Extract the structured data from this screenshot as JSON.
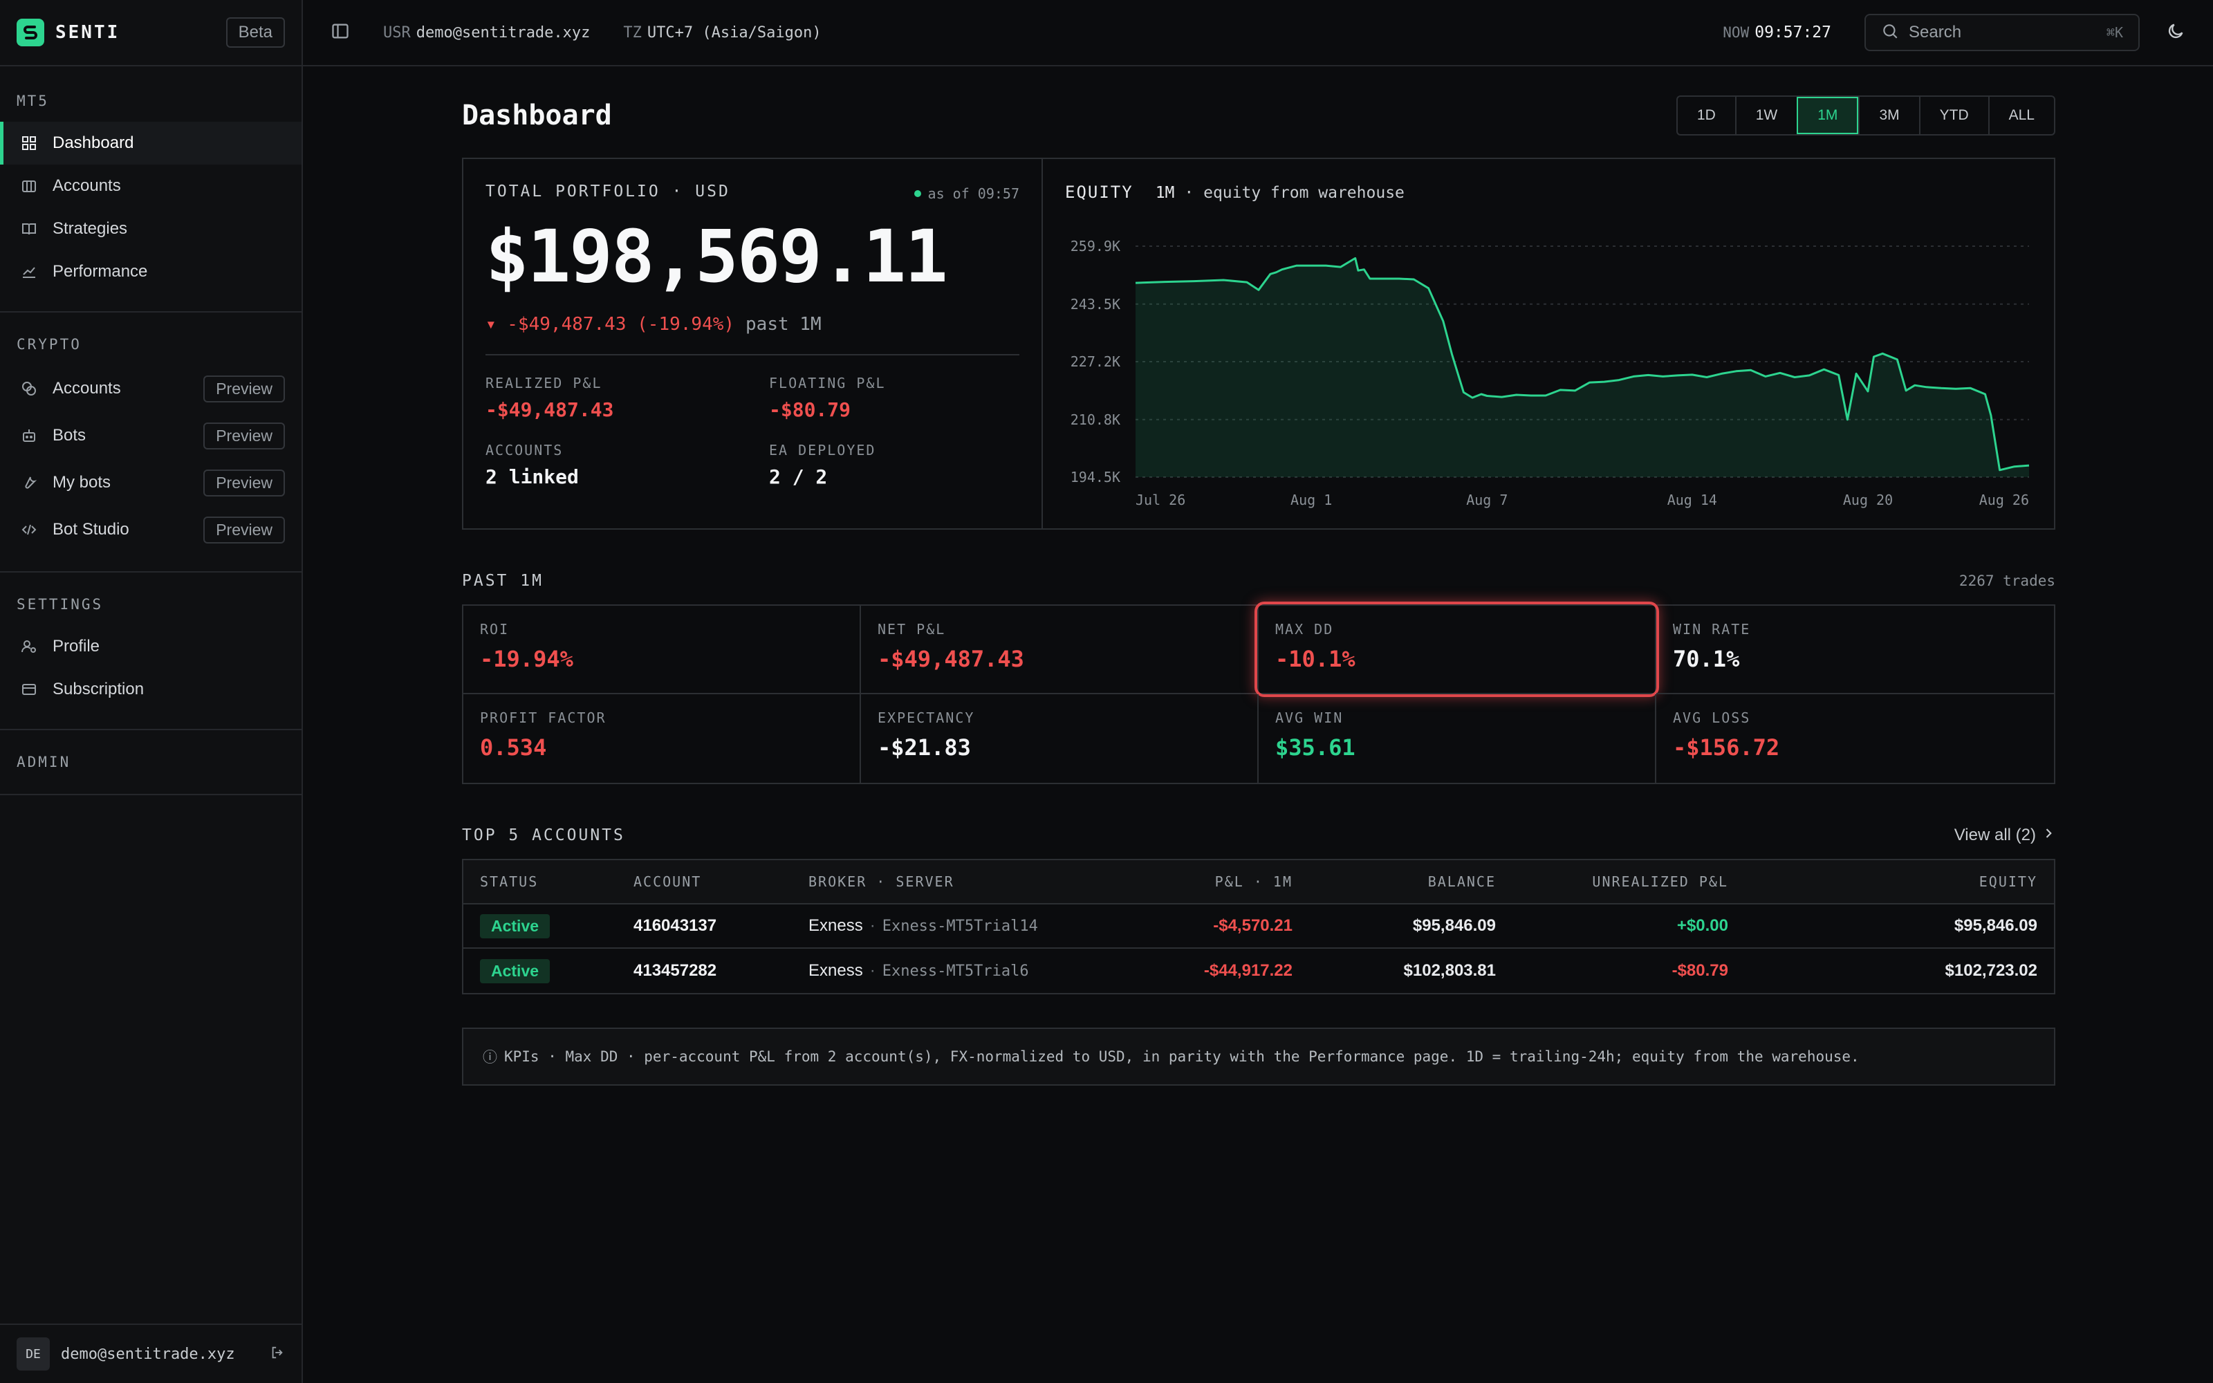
{
  "brand": {
    "name": "SENTI",
    "badge": "Beta"
  },
  "sidebar": {
    "sections": [
      {
        "heading": "MT5",
        "items": [
          {
            "label": "Dashboard",
            "icon": "grid-icon",
            "active": true
          },
          {
            "label": "Accounts",
            "icon": "briefcase-icon"
          },
          {
            "label": "Strategies",
            "icon": "book-icon"
          },
          {
            "label": "Performance",
            "icon": "chart-line-icon"
          }
        ]
      },
      {
        "heading": "CRYPTO",
        "items": [
          {
            "label": "Accounts",
            "icon": "coins-icon",
            "tag": "Preview"
          },
          {
            "label": "Bots",
            "icon": "bot-icon",
            "tag": "Preview"
          },
          {
            "label": "My bots",
            "icon": "wrench-icon",
            "tag": "Preview"
          },
          {
            "label": "Bot Studio",
            "icon": "code-icon",
            "tag": "Preview"
          }
        ]
      },
      {
        "heading": "SETTINGS",
        "items": [
          {
            "label": "Profile",
            "icon": "user-gear-icon"
          },
          {
            "label": "Subscription",
            "icon": "card-icon"
          }
        ]
      },
      {
        "heading": "ADMIN",
        "items": []
      }
    ],
    "footer": {
      "avatar": "DE",
      "email": "demo@sentitrade.xyz"
    }
  },
  "topbar": {
    "usr_label": "USR",
    "usr_value": "demo@sentitrade.xyz",
    "tz_label": "TZ",
    "tz_value": "UTC+7 (Asia/Saigon)",
    "now_label": "NOW",
    "now_value": "09:57:27",
    "search_placeholder": "Search",
    "search_shortcut": "⌘K"
  },
  "page": {
    "title": "Dashboard",
    "ranges": [
      "1D",
      "1W",
      "1M",
      "3M",
      "YTD",
      "ALL"
    ],
    "active_range": "1M"
  },
  "portfolio": {
    "label": "TOTAL PORTFOLIO · USD",
    "as_of": "as of 09:57",
    "total": "$198,569.11",
    "change": "▾ -$49,487.43 (-19.94%)",
    "change_period": "past 1M",
    "stats": [
      {
        "label": "REALIZED P&L",
        "value": "-$49,487.43",
        "tone": "neg"
      },
      {
        "label": "FLOATING P&L",
        "value": "-$80.79",
        "tone": "neg"
      },
      {
        "label": "ACCOUNTS",
        "value": "2 linked",
        "tone": "white"
      },
      {
        "label": "EA DEPLOYED",
        "value": "2 / 2",
        "tone": "white"
      }
    ]
  },
  "equity": {
    "title": "EQUITY",
    "range": "1M",
    "desc": "· equity from warehouse"
  },
  "chart_data": {
    "type": "area",
    "title": "EQUITY",
    "ytick_labels": [
      "259.9K",
      "243.5K",
      "227.2K",
      "210.8K",
      "194.5K"
    ],
    "yticks": [
      259900,
      243500,
      227200,
      210800,
      194500
    ],
    "ylim": [
      194500,
      259900
    ],
    "xtick_labels": [
      "Jul 26",
      "Aug 1",
      "Aug 7",
      "Aug 14",
      "Aug 20",
      "Aug 26"
    ],
    "xticks": [
      0,
      6,
      12,
      19,
      25,
      31
    ],
    "xlim": [
      0,
      30.5
    ],
    "grid": true,
    "color": "#2dd48f",
    "x": [
      0,
      1,
      2,
      3,
      3.8,
      4.2,
      4.6,
      4.8,
      5,
      5.5,
      6,
      6.5,
      7,
      7.5,
      7.6,
      7.8,
      8,
      8.5,
      9,
      9.5,
      10,
      10.5,
      10.8,
      11.2,
      11.5,
      11.8,
      12,
      12.5,
      13,
      13.5,
      14,
      14.5,
      15,
      15.5,
      16,
      16.5,
      17,
      17.5,
      18,
      18.5,
      19,
      19.5,
      20,
      20.5,
      21,
      21.5,
      22,
      22.5,
      23,
      23.5,
      24,
      24.3,
      24.6,
      25,
      25.2,
      25.5,
      26,
      26.3,
      26.6,
      27,
      27.5,
      28,
      28.5,
      29,
      29.2,
      29.5,
      30,
      30.5
    ],
    "y": [
      249500,
      249800,
      250000,
      250300,
      249700,
      247500,
      252000,
      252500,
      253300,
      254400,
      254400,
      254400,
      254000,
      256500,
      253000,
      253300,
      250700,
      250700,
      250700,
      250500,
      248000,
      238700,
      229300,
      218500,
      217000,
      218000,
      217500,
      217200,
      217800,
      217600,
      217600,
      219200,
      219000,
      221300,
      221500,
      222000,
      223000,
      223400,
      223000,
      223300,
      223500,
      222800,
      223800,
      224500,
      224800,
      223000,
      224000,
      222800,
      223300,
      225000,
      223400,
      210800,
      223800,
      218800,
      228600,
      229500,
      227800,
      219000,
      220500,
      220000,
      219700,
      219500,
      219700,
      218000,
      212000,
      196500,
      197500,
      197800
    ]
  },
  "kpis": {
    "heading": "PAST 1M",
    "trades": "2267 trades",
    "items": [
      {
        "label": "ROI",
        "value": "-19.94%",
        "tone": "neg"
      },
      {
        "label": "NET P&L",
        "value": "-$49,487.43",
        "tone": "neg"
      },
      {
        "label": "MAX DD",
        "value": "-10.1%",
        "tone": "neg",
        "highlight": true
      },
      {
        "label": "WIN RATE",
        "value": "70.1%",
        "tone": "white"
      },
      {
        "label": "PROFIT FACTOR",
        "value": "0.534",
        "tone": "neg"
      },
      {
        "label": "EXPECTANCY",
        "value": "-$21.83",
        "tone": "white"
      },
      {
        "label": "AVG WIN",
        "value": "$35.61",
        "tone": "pos"
      },
      {
        "label": "AVG LOSS",
        "value": "-$156.72",
        "tone": "neg"
      }
    ]
  },
  "accounts": {
    "heading": "TOP 5 ACCOUNTS",
    "view_all": "View all (2)",
    "columns": [
      "STATUS",
      "ACCOUNT",
      "BROKER · SERVER",
      "P&L · 1M",
      "BALANCE",
      "UNREALIZED P&L",
      "EQUITY"
    ],
    "rows": [
      {
        "status": "Active",
        "account": "416043137",
        "broker": "Exness",
        "server": "Exness-MT5Trial14",
        "pnl": "-$4,570.21",
        "pnl_tone": "neg",
        "balance": "$95,846.09",
        "unrealized": "+$0.00",
        "unr_tone": "pos",
        "equity": "$95,846.09"
      },
      {
        "status": "Active",
        "account": "413457282",
        "broker": "Exness",
        "server": "Exness-MT5Trial6",
        "pnl": "-$44,917.22",
        "pnl_tone": "neg",
        "balance": "$102,803.81",
        "unrealized": "-$80.79",
        "unr_tone": "neg",
        "equity": "$102,723.02"
      }
    ]
  },
  "info": {
    "icon": "ⓘ",
    "text": "KPIs · Max DD · per-account P&L from 2 account(s), FX-normalized to USD, in parity with the Performance page. 1D = trailing-24h; equity from the warehouse."
  }
}
